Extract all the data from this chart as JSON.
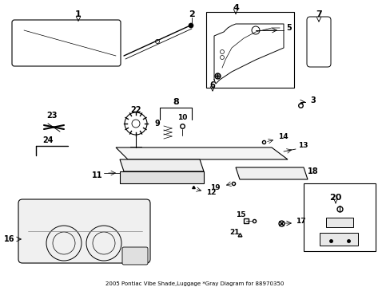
{
  "title": "2005 Pontiac Vibe Shade,Luggage *Gray Diagram for 88970350",
  "bg_color": "#ffffff",
  "fig_width": 4.89,
  "fig_height": 3.6,
  "dpi": 100
}
